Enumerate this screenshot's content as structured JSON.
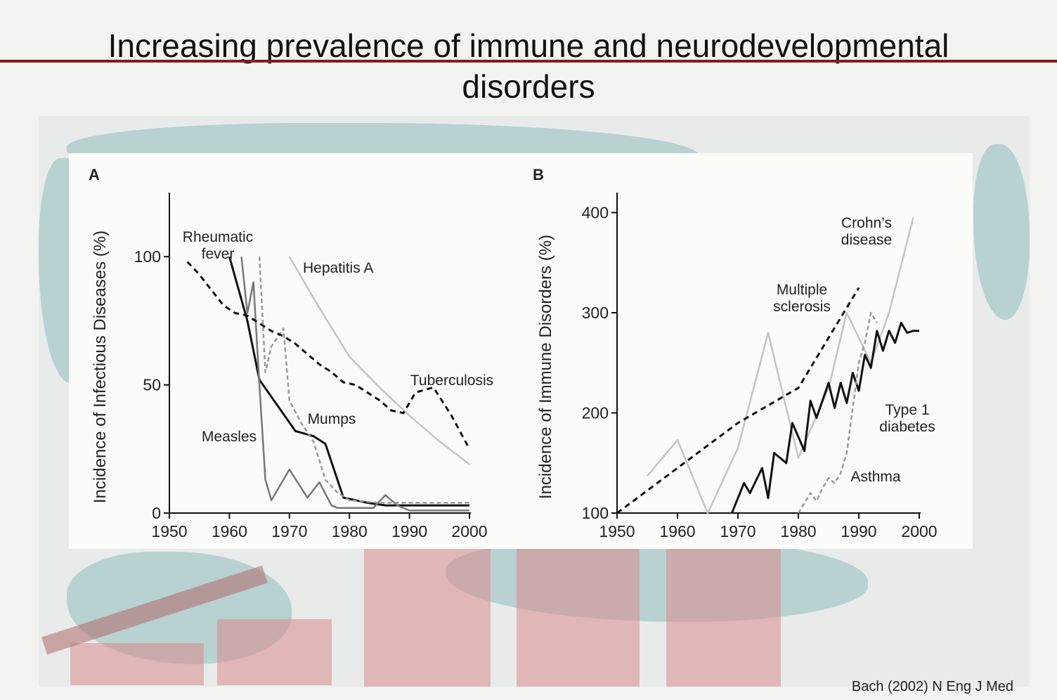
{
  "slide": {
    "title": "Increasing prevalence of immune and neurodevelopmental\ndisorders",
    "citation": "Bach (2002) N Eng J Med"
  },
  "chart_data": [
    {
      "type": "line",
      "panel_label": "A",
      "title": "",
      "xlabel": "",
      "ylabel": "Incidence of Infectious Diseases (%)",
      "xlim": [
        1950,
        2000
      ],
      "ylim": [
        0,
        125
      ],
      "xticks": [
        1950,
        1960,
        1970,
        1980,
        1990,
        2000
      ],
      "yticks": [
        0,
        50,
        100
      ],
      "grid": false,
      "series": [
        {
          "name": "Rheumatic fever",
          "color": "#111111",
          "dash": "none",
          "label_lines": [
            "Rheumatic",
            "fever"
          ],
          "x": [
            1960,
            1963,
            1965,
            1968,
            1971,
            1974,
            1976,
            1979,
            1983,
            1986,
            1990,
            1995,
            2000
          ],
          "y": [
            100,
            75,
            52,
            42,
            32,
            30,
            27,
            6,
            4,
            3,
            3,
            3,
            3
          ]
        },
        {
          "name": "Measles",
          "color": "#777777",
          "dash": "none",
          "label_lines": [
            "Measles"
          ],
          "x": [
            1962,
            1963,
            1964,
            1965,
            1966,
            1967,
            1970,
            1973,
            1975,
            1977,
            1978,
            1982,
            1984,
            1986,
            1988,
            1990,
            2000
          ],
          "y": [
            100,
            78,
            90,
            50,
            13,
            5,
            17,
            6,
            12,
            3,
            2,
            2,
            2,
            7,
            3,
            1,
            1
          ]
        },
        {
          "name": "Mumps",
          "color": "#999999",
          "dash": "6,4",
          "label_lines": [
            "Mumps"
          ],
          "x": [
            1965,
            1966,
            1967,
            1969,
            1970,
            1972,
            1974,
            1976,
            1978,
            1980,
            1985,
            1990,
            2000
          ],
          "y": [
            100,
            55,
            65,
            72,
            44,
            35,
            28,
            13,
            8,
            5,
            4,
            4,
            4
          ]
        },
        {
          "name": "Hepatitis A",
          "color": "#c4c4c4",
          "dash": "none",
          "label_lines": [
            "Hepatitis A"
          ],
          "x": [
            1970,
            1975,
            1980,
            1985,
            1990,
            1995,
            2000
          ],
          "y": [
            100,
            80,
            61,
            49,
            38,
            28,
            19
          ]
        },
        {
          "name": "Tuberculosis",
          "color": "#111111",
          "dash": "8,6",
          "label_lines": [
            "Tuberculosis"
          ],
          "x": [
            1953,
            1955,
            1957,
            1959,
            1961,
            1963,
            1965,
            1967,
            1969,
            1971,
            1973,
            1975,
            1977,
            1979,
            1981,
            1983,
            1985,
            1987,
            1989,
            1991,
            1994,
            1997,
            2000
          ],
          "y": [
            98,
            93,
            87,
            81,
            78,
            77,
            74,
            71,
            69,
            66,
            62,
            58,
            55,
            51,
            50,
            47,
            44,
            40,
            39,
            47,
            49,
            38,
            25
          ]
        }
      ]
    },
    {
      "type": "line",
      "panel_label": "B",
      "title": "",
      "xlabel": "",
      "ylabel": "Incidence of Immune Disorders (%)",
      "xlim": [
        1950,
        2000
      ],
      "ylim": [
        100,
        420
      ],
      "xticks": [
        1950,
        1960,
        1970,
        1980,
        1990,
        2000
      ],
      "yticks": [
        100,
        200,
        300,
        400
      ],
      "grid": false,
      "series": [
        {
          "name": "Crohn's disease",
          "color": "#c4c4c4",
          "dash": "none",
          "label_lines": [
            "Crohn’s",
            "disease"
          ],
          "x": [
            1955,
            1960,
            1965,
            1970,
            1975,
            1980,
            1985,
            1988,
            1992,
            1995,
            1999
          ],
          "y": [
            137,
            173,
            100,
            165,
            280,
            155,
            225,
            300,
            250,
            300,
            395
          ]
        },
        {
          "name": "Multiple sclerosis",
          "color": "#111111",
          "dash": "8,6",
          "label_lines": [
            "Multiple",
            "sclerosis"
          ],
          "x": [
            1950,
            1960,
            1970,
            1980,
            1985,
            1990
          ],
          "y": [
            100,
            145,
            190,
            225,
            275,
            325
          ]
        },
        {
          "name": "Type 1 diabetes",
          "color": "#111111",
          "dash": "none",
          "label_lines": [
            "Type 1",
            "diabetes"
          ],
          "x": [
            1969,
            1971,
            1972,
            1974,
            1975,
            1976,
            1978,
            1979,
            1981,
            1982,
            1983,
            1985,
            1986,
            1987,
            1988,
            1989,
            1990,
            1991,
            1992,
            1993,
            1994,
            1995,
            1996,
            1997,
            1998,
            1999,
            2000
          ],
          "y": [
            100,
            130,
            120,
            145,
            115,
            160,
            150,
            190,
            162,
            212,
            195,
            230,
            205,
            230,
            210,
            240,
            222,
            258,
            245,
            282,
            262,
            282,
            270,
            290,
            280,
            282,
            282
          ]
        },
        {
          "name": "Asthma",
          "color": "#999999",
          "dash": "6,4",
          "label_lines": [
            "Asthma"
          ],
          "x": [
            1980,
            1982,
            1983,
            1984,
            1985,
            1986,
            1987,
            1988,
            1990,
            1991,
            1992,
            1993
          ],
          "y": [
            100,
            120,
            112,
            125,
            135,
            130,
            140,
            160,
            250,
            270,
            300,
            290
          ]
        }
      ]
    }
  ]
}
